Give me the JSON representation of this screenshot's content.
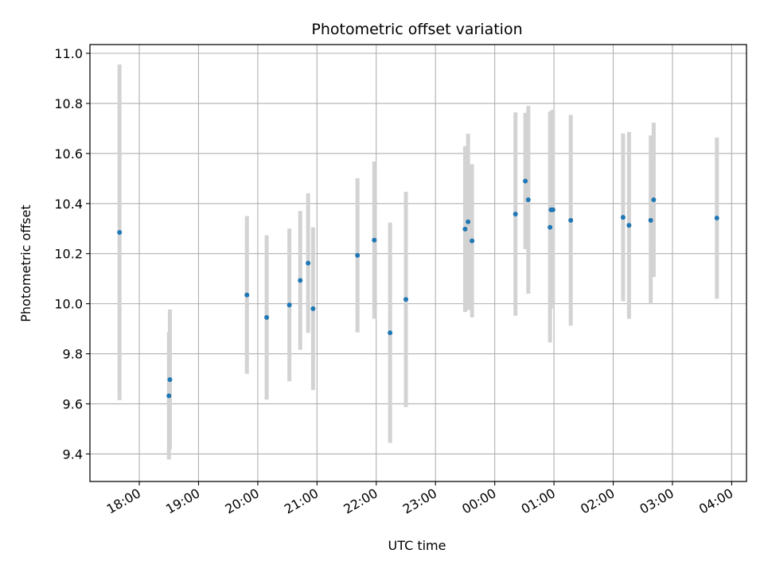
{
  "chart_data": {
    "type": "scatter",
    "title": "Photometric offset variation",
    "xlabel": "UTC time",
    "ylabel": "Photometric offset",
    "x_tick_labels": [
      "18:00",
      "19:00",
      "20:00",
      "21:00",
      "22:00",
      "23:00",
      "00:00",
      "01:00",
      "02:00",
      "03:00",
      "04:00"
    ],
    "x_tick_hours": [
      18,
      19,
      20,
      21,
      22,
      23,
      24,
      25,
      26,
      27,
      28
    ],
    "y_ticks": [
      9.4,
      9.6,
      9.8,
      10.0,
      10.2,
      10.4,
      10.6,
      10.8,
      11.0
    ],
    "y_tick_labels": [
      "9.4",
      "9.6",
      "9.8",
      "10.0",
      "10.2",
      "10.4",
      "10.6",
      "10.8",
      "11.0"
    ],
    "xlim": [
      "17:10",
      "04:15"
    ],
    "ylim": [
      9.29,
      11.035
    ],
    "grid": true,
    "colors": {
      "marker": "#1f77b4",
      "errorbar": "#d3d3d3",
      "grid": "#b0b0b0"
    },
    "points": [
      {
        "time": "17:40",
        "y": 10.285,
        "low": 9.615,
        "high": 10.955
      },
      {
        "time": "18:30",
        "y": 9.632,
        "low": 9.378,
        "high": 9.886
      },
      {
        "time": "18:31",
        "y": 9.697,
        "low": 9.417,
        "high": 9.977
      },
      {
        "time": "19:49",
        "y": 10.035,
        "low": 9.72,
        "high": 10.35
      },
      {
        "time": "20:09",
        "y": 9.945,
        "low": 9.617,
        "high": 10.273
      },
      {
        "time": "20:32",
        "y": 9.995,
        "low": 9.69,
        "high": 10.3
      },
      {
        "time": "20:43",
        "y": 10.093,
        "low": 9.816,
        "high": 10.37
      },
      {
        "time": "20:51",
        "y": 10.162,
        "low": 9.883,
        "high": 10.441
      },
      {
        "time": "20:56",
        "y": 9.98,
        "low": 9.655,
        "high": 10.305
      },
      {
        "time": "21:41",
        "y": 10.193,
        "low": 9.885,
        "high": 10.501
      },
      {
        "time": "21:58",
        "y": 10.254,
        "low": 9.94,
        "high": 10.568
      },
      {
        "time": "22:14",
        "y": 9.884,
        "low": 9.444,
        "high": 10.324
      },
      {
        "time": "22:30",
        "y": 10.017,
        "low": 9.587,
        "high": 10.447
      },
      {
        "time": "23:30",
        "y": 10.298,
        "low": 9.967,
        "high": 10.629
      },
      {
        "time": "23:33",
        "y": 10.327,
        "low": 9.975,
        "high": 10.679
      },
      {
        "time": "23:37",
        "y": 10.251,
        "low": 9.945,
        "high": 10.557
      },
      {
        "time": "00:21",
        "y": 10.358,
        "low": 9.952,
        "high": 10.764
      },
      {
        "time": "00:31",
        "y": 10.49,
        "low": 10.218,
        "high": 10.762
      },
      {
        "time": "00:34",
        "y": 10.415,
        "low": 10.04,
        "high": 10.79
      },
      {
        "time": "00:56",
        "y": 10.305,
        "low": 9.845,
        "high": 10.765
      },
      {
        "time": "00:57",
        "y": 10.375,
        "low": 9.98,
        "high": 10.77
      },
      {
        "time": "00:59",
        "y": 10.375,
        "low": 10.0,
        "high": 10.775
      },
      {
        "time": "01:17",
        "y": 10.333,
        "low": 9.912,
        "high": 10.754
      },
      {
        "time": "02:10",
        "y": 10.345,
        "low": 10.01,
        "high": 10.68
      },
      {
        "time": "02:16",
        "y": 10.313,
        "low": 9.94,
        "high": 10.686
      },
      {
        "time": "02:38",
        "y": 10.333,
        "low": 10.0,
        "high": 10.672
      },
      {
        "time": "02:41",
        "y": 10.415,
        "low": 10.107,
        "high": 10.723
      },
      {
        "time": "03:45",
        "y": 10.342,
        "low": 10.02,
        "high": 10.664
      }
    ]
  }
}
